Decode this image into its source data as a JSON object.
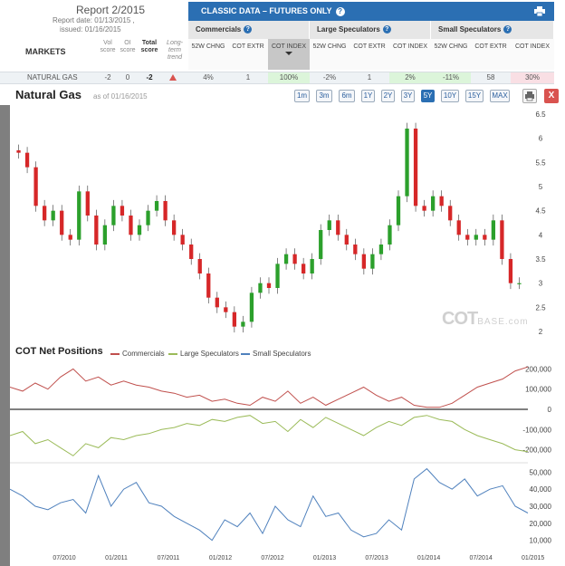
{
  "report": {
    "title": "Report 2/2015",
    "report_date": "Report date: 01/13/2015 ,",
    "issued": "issued: 01/16/2015"
  },
  "markets_table": {
    "markets_label": "MARKETS",
    "vol_score": "Vol score",
    "oi_score": "OI score",
    "total_score": "Total score",
    "trend_label": "Long-term trend",
    "classic_title": "CLASSIC DATA – FUTURES ONLY",
    "groups": [
      "Commercials",
      "Large Speculators",
      "Small Speculators"
    ],
    "sub_headers": [
      "52W CHNG",
      "COT EXTR",
      "COT INDEX",
      "52W CHNG",
      "COT EXTR",
      "COT INDEX",
      "52W CHNG",
      "COT EXTR",
      "COT INDEX"
    ],
    "row": {
      "market": "NATURAL GAS",
      "vol": "-2",
      "oi": "0",
      "total": "-2",
      "cells": [
        "4%",
        "1",
        "100%",
        "-2%",
        "1",
        "2%",
        "-11%",
        "58",
        "30%"
      ]
    }
  },
  "chart_header": {
    "title": "Natural Gas",
    "as_of": "as of 01/16/2015",
    "ranges": [
      "1m",
      "3m",
      "6m",
      "1Y",
      "2Y",
      "3Y",
      "5Y",
      "10Y",
      "15Y",
      "MAX"
    ],
    "active_range": "5Y",
    "close_label": "X"
  },
  "watermark": {
    "main": "COT",
    "sub": "BASE.com"
  },
  "cot_panel": {
    "title": "COT Net Positions",
    "legend": [
      "Commercials",
      "Large Speculators",
      "Small Speculators"
    ]
  },
  "colors": {
    "accent": "#2b6fb3",
    "commercials": "#c0504d",
    "large_specs": "#9bbb59",
    "small_specs": "#4f81bd",
    "candle_up": "#2ca02c",
    "candle_down": "#d62728"
  },
  "chart_data": [
    {
      "type": "candlestick",
      "title": "Natural Gas",
      "y_ticks": [
        "6.5",
        "6",
        "5.5",
        "5",
        "4.5",
        "4",
        "3.5",
        "3",
        "2.5",
        "2"
      ],
      "ylim": [
        2,
        6.5
      ],
      "x_ticks": [
        "07/2010",
        "01/2011",
        "07/2011",
        "01/2012",
        "07/2012",
        "01/2013",
        "07/2013",
        "01/2014",
        "07/2014",
        "01/2015"
      ],
      "close": [
        5.7,
        5.4,
        4.6,
        4.3,
        4.5,
        4.0,
        3.9,
        4.9,
        4.4,
        3.8,
        4.2,
        4.6,
        4.4,
        4.0,
        4.2,
        4.5,
        4.7,
        4.3,
        4.0,
        3.8,
        3.5,
        3.2,
        2.7,
        2.5,
        2.4,
        2.1,
        2.2,
        2.8,
        3.0,
        2.9,
        3.4,
        3.6,
        3.4,
        3.2,
        3.5,
        4.1,
        4.3,
        4.0,
        3.8,
        3.6,
        3.3,
        3.6,
        3.8,
        4.2,
        4.8,
        6.2,
        4.6,
        4.5,
        4.8,
        4.6,
        4.3,
        4.0,
        3.9,
        4.0,
        3.9,
        4.3,
        3.5,
        3.0,
        3.0
      ],
      "series_legend": [
        "Commercials",
        "Large Speculators",
        "Small Speculators"
      ],
      "big_spec_y_ticks": [
        "200,000",
        "100,000",
        "0",
        "-100,000",
        "-200,000"
      ],
      "small_spec_y_ticks": [
        "50,000",
        "40,000",
        "30,000",
        "20,000",
        "10,000"
      ],
      "commercials": [
        110000,
        90000,
        130000,
        100000,
        160000,
        200000,
        140000,
        160000,
        120000,
        140000,
        120000,
        110000,
        90000,
        80000,
        60000,
        70000,
        40000,
        50000,
        30000,
        20000,
        60000,
        40000,
        90000,
        30000,
        60000,
        20000,
        50000,
        80000,
        110000,
        70000,
        40000,
        60000,
        20000,
        10000,
        10000,
        30000,
        70000,
        110000,
        130000,
        150000,
        190000,
        210000
      ],
      "large_speculators": [
        -130000,
        -110000,
        -170000,
        -150000,
        -190000,
        -230000,
        -170000,
        -190000,
        -140000,
        -150000,
        -130000,
        -120000,
        -100000,
        -90000,
        -70000,
        -80000,
        -50000,
        -60000,
        -40000,
        -30000,
        -70000,
        -60000,
        -110000,
        -50000,
        -90000,
        -40000,
        -70000,
        -100000,
        -130000,
        -90000,
        -60000,
        -80000,
        -40000,
        -30000,
        -50000,
        -60000,
        -100000,
        -130000,
        -150000,
        -170000,
        -200000,
        -210000
      ],
      "small_speculators": [
        40000,
        36000,
        30000,
        28000,
        32000,
        34000,
        26000,
        48000,
        30000,
        40000,
        44000,
        32000,
        30000,
        24000,
        20000,
        16000,
        10000,
        22000,
        18000,
        26000,
        14000,
        30000,
        22000,
        18000,
        36000,
        24000,
        26000,
        16000,
        12000,
        14000,
        22000,
        16000,
        46000,
        52000,
        44000,
        40000,
        46000,
        36000,
        40000,
        42000,
        30000,
        26000
      ]
    }
  ]
}
